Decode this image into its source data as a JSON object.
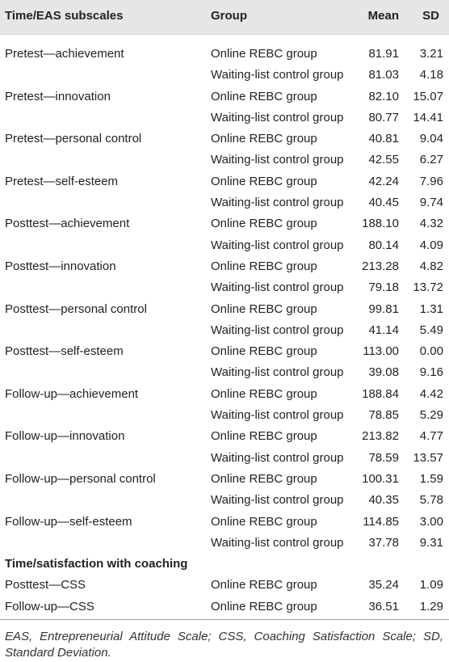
{
  "table": {
    "header": {
      "subscale": "Time/EAS subscales",
      "group": "Group",
      "mean": "Mean",
      "sd": "SD"
    },
    "eas_rows": [
      {
        "subscale": "Pretest—achievement",
        "group": "Online REBC group",
        "mean": "81.91",
        "sd": "3.21"
      },
      {
        "subscale": "",
        "group": "Waiting-list control group",
        "mean": "81.03",
        "sd": "4.18"
      },
      {
        "subscale": "Pretest—innovation",
        "group": "Online REBC group",
        "mean": "82.10",
        "sd": "15.07"
      },
      {
        "subscale": "",
        "group": "Waiting-list control group",
        "mean": "80.77",
        "sd": "14.41"
      },
      {
        "subscale": "Pretest—personal control",
        "group": "Online REBC group",
        "mean": "40.81",
        "sd": "9.04"
      },
      {
        "subscale": "",
        "group": "Waiting-list control group",
        "mean": "42.55",
        "sd": "6.27"
      },
      {
        "subscale": "Pretest—self-esteem",
        "group": "Online REBC group",
        "mean": "42.24",
        "sd": "7.96"
      },
      {
        "subscale": "",
        "group": "Waiting-list control group",
        "mean": "40.45",
        "sd": "9.74"
      },
      {
        "subscale": "Posttest—achievement",
        "group": "Online REBC group",
        "mean": "188.10",
        "sd": "4.32"
      },
      {
        "subscale": "",
        "group": "Waiting-list control group",
        "mean": "80.14",
        "sd": "4.09"
      },
      {
        "subscale": "Posttest—innovation",
        "group": "Online REBC group",
        "mean": "213.28",
        "sd": "4.82"
      },
      {
        "subscale": "",
        "group": "Waiting-list control group",
        "mean": "79.18",
        "sd": "13.72"
      },
      {
        "subscale": "Posttest—personal control",
        "group": "Online REBC group",
        "mean": "99.81",
        "sd": "1.31"
      },
      {
        "subscale": "",
        "group": "Waiting-list control group",
        "mean": "41.14",
        "sd": "5.49"
      },
      {
        "subscale": "Posttest—self-esteem",
        "group": "Online REBC group",
        "mean": "113.00",
        "sd": "0.00"
      },
      {
        "subscale": "",
        "group": "Waiting-list control group",
        "mean": "39.08",
        "sd": "9.16"
      },
      {
        "subscale": "Follow-up—achievement",
        "group": "Online REBC group",
        "mean": "188.84",
        "sd": "4.42"
      },
      {
        "subscale": "",
        "group": "Waiting-list control group",
        "mean": "78.85",
        "sd": "5.29"
      },
      {
        "subscale": "Follow-up—innovation",
        "group": "Online REBC group",
        "mean": "213.82",
        "sd": "4.77"
      },
      {
        "subscale": "",
        "group": "Waiting-list control group",
        "mean": "78.59",
        "sd": "13.57"
      },
      {
        "subscale": "Follow-up—personal control",
        "group": "Online REBC group",
        "mean": "100.31",
        "sd": "1.59"
      },
      {
        "subscale": "",
        "group": "Waiting-list control group",
        "mean": "40.35",
        "sd": "5.78"
      },
      {
        "subscale": "Follow-up—self-esteem",
        "group": "Online REBC group",
        "mean": "114.85",
        "sd": "3.00"
      },
      {
        "subscale": "",
        "group": "Waiting-list control group",
        "mean": "37.78",
        "sd": "9.31"
      }
    ],
    "section_2": {
      "title": "Time/satisfaction with coaching",
      "rows": [
        {
          "subscale": "Posttest—CSS",
          "group": "Online REBC group",
          "mean": "35.24",
          "sd": "1.09"
        },
        {
          "subscale": "Follow-up—CSS",
          "group": "Online REBC group",
          "mean": "36.51",
          "sd": "1.29"
        }
      ]
    }
  },
  "footnote": "EAS, Entrepreneurial Attitude Scale; CSS, Coaching Satisfaction Scale; SD, Standard Deviation.",
  "colors": {
    "header_bg": "#e6e6e6",
    "text": "#222222",
    "rule": "#9a9a9a"
  }
}
